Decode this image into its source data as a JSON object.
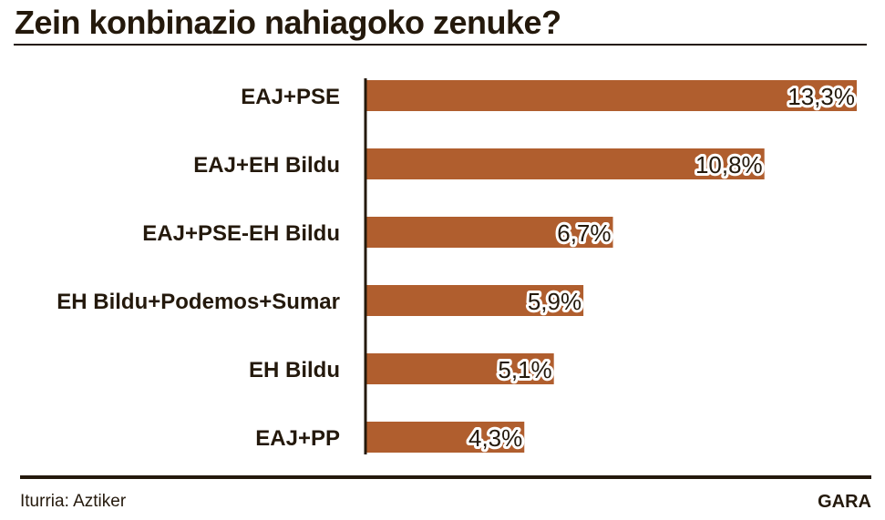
{
  "chart_data": {
    "type": "bar",
    "orientation": "horizontal",
    "title": "Zein konbinazio nahiagoko zenuke?",
    "categories": [
      "EAJ+PSE",
      "EAJ+EH Bildu",
      "EAJ+PSE-EH Bildu",
      "EH Bildu+Podemos+Sumar",
      "EH Bildu",
      "EAJ+PP"
    ],
    "values": [
      13.3,
      10.8,
      6.7,
      5.9,
      5.1,
      4.3
    ],
    "value_labels": [
      "13,3%",
      "10,8%",
      "6,7%",
      "5,9%",
      "5,1%",
      "4,3%"
    ],
    "xlabel": "",
    "ylabel": "",
    "xlim": [
      0,
      13.3
    ],
    "grid": false,
    "bar_color": "#B05E2E"
  },
  "footer": {
    "source": "Iturria: Aztiker",
    "brand": "GARA"
  }
}
